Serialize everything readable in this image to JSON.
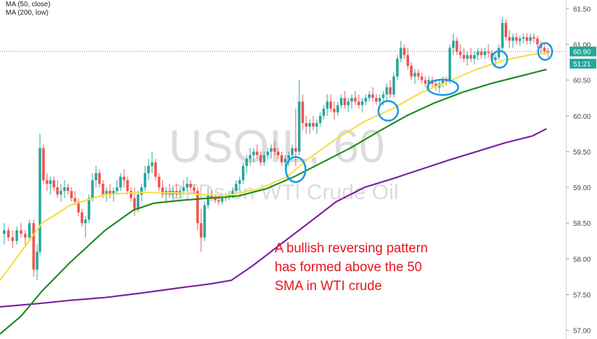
{
  "chart_data": {
    "type": "candlestick",
    "title": "USOIL, 60",
    "subtitle": "CFDs on WTI Crude Oil",
    "indicators": [
      {
        "name": "MA (50, close)",
        "color": "#f2e04a"
      },
      {
        "name": "MA (200, low)",
        "color": "#7b1fa2"
      }
    ],
    "extra_ma_color": "#1e8a1e",
    "ylim": [
      56.88,
      61.62
    ],
    "y_ticks": [
      "61.50",
      "61.00",
      "60.50",
      "60.00",
      "59.50",
      "59.00",
      "58.50",
      "58.00",
      "57.50",
      "57.00"
    ],
    "y_tick_values": [
      61.5,
      61.0,
      60.5,
      60.0,
      59.5,
      59.0,
      58.5,
      58.0,
      57.5,
      57.0
    ],
    "last_price_label": "60.90",
    "last_price": 60.9,
    "countdown_label": "51:21",
    "countdown_price": 60.73,
    "ma50": [
      [
        0,
        57.7
      ],
      [
        30,
        58.1
      ],
      [
        60,
        58.5
      ],
      [
        100,
        58.75
      ],
      [
        150,
        58.9
      ],
      [
        200,
        58.93
      ],
      [
        260,
        58.92
      ],
      [
        320,
        58.88
      ],
      [
        370,
        58.98
      ],
      [
        410,
        59.15
      ],
      [
        440,
        59.4
      ],
      [
        480,
        59.68
      ],
      [
        520,
        59.92
      ],
      [
        560,
        60.1
      ],
      [
        600,
        60.32
      ],
      [
        640,
        60.48
      ],
      [
        680,
        60.65
      ],
      [
        720,
        60.78
      ],
      [
        760,
        60.86
      ],
      [
        785,
        60.88
      ]
    ],
    "ma100_green": [
      [
        0,
        56.95
      ],
      [
        30,
        57.2
      ],
      [
        60,
        57.55
      ],
      [
        100,
        57.95
      ],
      [
        150,
        58.4
      ],
      [
        190,
        58.68
      ],
      [
        220,
        58.78
      ],
      [
        260,
        58.82
      ],
      [
        300,
        58.85
      ],
      [
        340,
        58.88
      ],
      [
        380,
        58.98
      ],
      [
        420,
        59.15
      ],
      [
        460,
        59.35
      ],
      [
        500,
        59.55
      ],
      [
        540,
        59.78
      ],
      [
        580,
        60.0
      ],
      [
        620,
        60.18
      ],
      [
        660,
        60.33
      ],
      [
        700,
        60.45
      ],
      [
        740,
        60.55
      ],
      [
        780,
        60.65
      ]
    ],
    "ma200": [
      [
        0,
        57.33
      ],
      [
        60,
        57.38
      ],
      [
        100,
        57.42
      ],
      [
        150,
        57.46
      ],
      [
        200,
        57.52
      ],
      [
        260,
        57.6
      ],
      [
        300,
        57.65
      ],
      [
        330,
        57.7
      ],
      [
        360,
        57.9
      ],
      [
        400,
        58.2
      ],
      [
        440,
        58.5
      ],
      [
        480,
        58.8
      ],
      [
        520,
        59.0
      ],
      [
        560,
        59.12
      ],
      [
        600,
        59.25
      ],
      [
        640,
        59.38
      ],
      [
        680,
        59.5
      ],
      [
        720,
        59.62
      ],
      [
        760,
        59.72
      ],
      [
        780,
        59.82
      ]
    ],
    "candles": [
      [
        6,
        58.35,
        58.5,
        58.2,
        58.4
      ],
      [
        12,
        58.4,
        58.45,
        58.25,
        58.3
      ],
      [
        18,
        58.3,
        58.4,
        58.15,
        58.25
      ],
      [
        24,
        58.25,
        58.45,
        58.2,
        58.4
      ],
      [
        30,
        58.4,
        58.5,
        58.3,
        58.35
      ],
      [
        36,
        58.35,
        58.4,
        58.2,
        58.3
      ],
      [
        42,
        58.3,
        58.55,
        58.25,
        58.5
      ],
      [
        48,
        58.5,
        58.55,
        57.75,
        57.85
      ],
      [
        53,
        57.85,
        58.2,
        57.7,
        58.1
      ],
      [
        57,
        58.1,
        59.75,
        58.05,
        59.55
      ],
      [
        62,
        59.55,
        59.6,
        59.05,
        59.1
      ],
      [
        67,
        59.1,
        59.2,
        58.95,
        59.05
      ],
      [
        72,
        59.05,
        59.15,
        58.9,
        59.1
      ],
      [
        77,
        59.1,
        59.15,
        58.95,
        59.0
      ],
      [
        82,
        59.0,
        59.1,
        58.85,
        58.9
      ],
      [
        87,
        58.9,
        59.05,
        58.8,
        58.95
      ],
      [
        92,
        58.95,
        59.1,
        58.85,
        59.0
      ],
      [
        97,
        59.0,
        59.05,
        58.9,
        58.95
      ],
      [
        102,
        58.95,
        59.0,
        58.8,
        58.85
      ],
      [
        107,
        58.85,
        58.95,
        58.75,
        58.8
      ],
      [
        112,
        58.8,
        58.85,
        58.6,
        58.65
      ],
      [
        117,
        58.65,
        58.7,
        58.45,
        58.5
      ],
      [
        122,
        58.5,
        58.6,
        58.3,
        58.55
      ],
      [
        127,
        58.55,
        58.9,
        58.5,
        58.85
      ],
      [
        132,
        58.85,
        59.2,
        58.8,
        59.1
      ],
      [
        137,
        59.1,
        59.3,
        59.0,
        59.2
      ],
      [
        142,
        59.2,
        59.25,
        59.0,
        59.05
      ],
      [
        147,
        59.05,
        59.1,
        58.85,
        58.9
      ],
      [
        152,
        58.9,
        59.0,
        58.8,
        58.95
      ],
      [
        157,
        58.95,
        59.05,
        58.85,
        58.9
      ],
      [
        162,
        58.9,
        59.0,
        58.8,
        58.95
      ],
      [
        167,
        58.95,
        59.1,
        58.9,
        59.0
      ],
      [
        172,
        59.0,
        59.2,
        58.95,
        59.15
      ],
      [
        177,
        59.15,
        59.25,
        59.0,
        59.1
      ],
      [
        182,
        59.1,
        59.15,
        58.9,
        58.95
      ],
      [
        187,
        58.95,
        59.0,
        58.8,
        58.85
      ],
      [
        192,
        58.85,
        59.0,
        58.6,
        58.7
      ],
      [
        197,
        58.7,
        58.95,
        58.65,
        58.9
      ],
      [
        202,
        58.9,
        59.05,
        58.8,
        59.0
      ],
      [
        207,
        59.0,
        59.3,
        58.95,
        59.2
      ],
      [
        212,
        59.2,
        59.4,
        59.1,
        59.3
      ],
      [
        217,
        59.3,
        59.5,
        59.2,
        59.35
      ],
      [
        222,
        59.35,
        59.4,
        59.1,
        59.15
      ],
      [
        227,
        59.15,
        59.2,
        58.95,
        59.0
      ],
      [
        232,
        59.0,
        59.1,
        58.85,
        58.9
      ],
      [
        237,
        58.9,
        59.0,
        58.8,
        58.95
      ],
      [
        242,
        58.95,
        59.05,
        58.85,
        58.9
      ],
      [
        247,
        58.9,
        59.0,
        58.8,
        58.95
      ],
      [
        252,
        58.95,
        59.05,
        58.85,
        58.9
      ],
      [
        257,
        58.9,
        59.0,
        58.85,
        58.95
      ],
      [
        262,
        58.95,
        59.1,
        58.9,
        59.0
      ],
      [
        267,
        59.0,
        59.15,
        58.95,
        59.05
      ],
      [
        272,
        59.05,
        59.1,
        58.95,
        59.0
      ],
      [
        277,
        59.0,
        59.05,
        58.9,
        58.95
      ],
      [
        282,
        58.95,
        59.0,
        58.4,
        58.5
      ],
      [
        287,
        58.5,
        58.7,
        58.1,
        58.3
      ],
      [
        292,
        58.3,
        58.8,
        58.25,
        58.75
      ],
      [
        297,
        58.75,
        59.0,
        58.7,
        58.9
      ],
      [
        302,
        58.9,
        58.95,
        58.8,
        58.85
      ],
      [
        307,
        58.85,
        58.9,
        58.78,
        58.82
      ],
      [
        312,
        58.82,
        58.88,
        58.75,
        58.8
      ],
      [
        317,
        58.8,
        58.9,
        58.76,
        58.85
      ],
      [
        322,
        58.85,
        58.92,
        58.8,
        58.88
      ],
      [
        327,
        58.88,
        58.95,
        58.82,
        58.9
      ],
      [
        332,
        58.9,
        59.0,
        58.85,
        58.95
      ],
      [
        337,
        58.95,
        59.1,
        58.9,
        59.05
      ],
      [
        342,
        59.05,
        59.15,
        58.95,
        59.1
      ],
      [
        347,
        59.1,
        59.35,
        59.05,
        59.3
      ],
      [
        352,
        59.3,
        59.45,
        59.2,
        59.4
      ],
      [
        357,
        59.4,
        59.55,
        59.3,
        59.45
      ],
      [
        362,
        59.45,
        59.55,
        59.35,
        59.5
      ],
      [
        367,
        59.5,
        59.6,
        59.4,
        59.45
      ],
      [
        372,
        59.45,
        59.5,
        59.3,
        59.35
      ],
      [
        377,
        59.35,
        59.5,
        59.3,
        59.45
      ],
      [
        382,
        59.45,
        59.55,
        59.4,
        59.5
      ],
      [
        387,
        59.5,
        59.6,
        59.4,
        59.55
      ],
      [
        392,
        59.55,
        59.65,
        59.45,
        59.5
      ],
      [
        397,
        59.5,
        59.55,
        59.4,
        59.45
      ],
      [
        402,
        59.45,
        59.5,
        59.3,
        59.35
      ],
      [
        407,
        59.35,
        59.45,
        59.25,
        59.4
      ],
      [
        412,
        59.4,
        59.5,
        59.3,
        59.45
      ],
      [
        417,
        59.45,
        59.6,
        59.4,
        59.55
      ],
      [
        422,
        59.55,
        60.1,
        59.3,
        59.5
      ],
      [
        427,
        59.5,
        60.5,
        59.45,
        60.2
      ],
      [
        432,
        60.2,
        60.3,
        59.8,
        59.9
      ],
      [
        437,
        59.9,
        60.0,
        59.75,
        59.85
      ],
      [
        442,
        59.85,
        59.95,
        59.75,
        59.9
      ],
      [
        447,
        59.9,
        60.0,
        59.8,
        59.85
      ],
      [
        452,
        59.85,
        59.95,
        59.75,
        59.9
      ],
      [
        457,
        59.9,
        60.05,
        59.85,
        60.0
      ],
      [
        462,
        60.0,
        60.15,
        59.95,
        60.1
      ],
      [
        467,
        60.1,
        60.3,
        60.0,
        60.2
      ],
      [
        472,
        60.2,
        60.3,
        60.05,
        60.1
      ],
      [
        477,
        60.1,
        60.2,
        59.95,
        60.05
      ],
      [
        482,
        60.05,
        60.2,
        60.0,
        60.15
      ],
      [
        487,
        60.15,
        60.3,
        60.1,
        60.25
      ],
      [
        492,
        60.25,
        60.35,
        60.1,
        60.15
      ],
      [
        497,
        60.15,
        60.25,
        60.05,
        60.2
      ],
      [
        502,
        60.2,
        60.3,
        60.1,
        60.25
      ],
      [
        507,
        60.25,
        60.35,
        60.15,
        60.2
      ],
      [
        512,
        60.2,
        60.3,
        60.1,
        60.15
      ],
      [
        517,
        60.15,
        60.25,
        60.05,
        60.2
      ],
      [
        522,
        60.2,
        60.3,
        60.15,
        60.25
      ],
      [
        527,
        60.25,
        60.35,
        60.2,
        60.3
      ],
      [
        532,
        60.3,
        60.4,
        60.2,
        60.25
      ],
      [
        537,
        60.25,
        60.3,
        60.15,
        60.2
      ],
      [
        542,
        60.2,
        60.3,
        60.1,
        60.25
      ],
      [
        547,
        60.25,
        60.35,
        60.15,
        60.3
      ],
      [
        552,
        60.3,
        60.45,
        60.2,
        60.4
      ],
      [
        557,
        60.4,
        60.5,
        60.25,
        60.3
      ],
      [
        562,
        60.3,
        60.6,
        60.25,
        60.55
      ],
      [
        567,
        60.55,
        60.85,
        60.5,
        60.8
      ],
      [
        572,
        60.8,
        61.05,
        60.75,
        60.95
      ],
      [
        577,
        60.95,
        61.0,
        60.8,
        60.85
      ],
      [
        582,
        60.85,
        60.95,
        60.65,
        60.7
      ],
      [
        587,
        60.7,
        60.75,
        60.5,
        60.55
      ],
      [
        592,
        60.55,
        60.65,
        60.45,
        60.6
      ],
      [
        597,
        60.6,
        60.65,
        60.5,
        60.55
      ],
      [
        602,
        60.55,
        60.6,
        60.45,
        60.5
      ],
      [
        607,
        60.5,
        60.55,
        60.4,
        60.45
      ],
      [
        612,
        60.45,
        60.55,
        60.38,
        60.5
      ],
      [
        617,
        60.5,
        60.55,
        60.4,
        60.45
      ],
      [
        622,
        60.45,
        60.5,
        60.35,
        60.4
      ],
      [
        627,
        60.4,
        60.5,
        60.32,
        60.45
      ],
      [
        632,
        60.45,
        60.55,
        60.4,
        60.5
      ],
      [
        637,
        60.5,
        60.55,
        60.42,
        60.48
      ],
      [
        642,
        60.48,
        61.0,
        60.45,
        60.95
      ],
      [
        647,
        60.95,
        61.15,
        60.85,
        61.05
      ],
      [
        652,
        61.05,
        61.1,
        60.85,
        60.9
      ],
      [
        657,
        60.9,
        61.0,
        60.8,
        60.85
      ],
      [
        662,
        60.85,
        60.95,
        60.75,
        60.8
      ],
      [
        667,
        60.8,
        60.9,
        60.7,
        60.85
      ],
      [
        672,
        60.85,
        60.95,
        60.75,
        60.8
      ],
      [
        677,
        60.8,
        60.9,
        60.72,
        60.85
      ],
      [
        682,
        60.85,
        60.95,
        60.78,
        60.9
      ],
      [
        687,
        60.9,
        60.95,
        60.8,
        60.85
      ],
      [
        692,
        60.85,
        60.95,
        60.8,
        60.9
      ],
      [
        697,
        60.9,
        61.0,
        60.82,
        60.88
      ],
      [
        702,
        60.88,
        60.92,
        60.72,
        60.78
      ],
      [
        707,
        60.78,
        60.85,
        60.7,
        60.82
      ],
      [
        712,
        60.82,
        61.0,
        60.78,
        60.95
      ],
      [
        717,
        60.95,
        61.38,
        60.9,
        61.3
      ],
      [
        722,
        61.3,
        61.35,
        61.05,
        61.1
      ],
      [
        727,
        61.1,
        61.2,
        60.95,
        61.05
      ],
      [
        732,
        61.05,
        61.15,
        60.95,
        61.1
      ],
      [
        737,
        61.1,
        61.15,
        61.0,
        61.05
      ],
      [
        742,
        61.05,
        61.12,
        60.98,
        61.08
      ],
      [
        747,
        61.08,
        61.15,
        61.02,
        61.1
      ],
      [
        752,
        61.1,
        61.15,
        61.0,
        61.05
      ],
      [
        757,
        61.05,
        61.15,
        61.0,
        61.1
      ],
      [
        762,
        61.1,
        61.15,
        61.02,
        61.08
      ],
      [
        767,
        61.08,
        61.12,
        60.95,
        61.0
      ],
      [
        772,
        61.0,
        61.05,
        60.88,
        60.95
      ],
      [
        777,
        60.95,
        61.0,
        60.85,
        60.9
      ],
      [
        782,
        60.9,
        60.95,
        60.82,
        60.88
      ]
    ],
    "highlight_circles": [
      {
        "x": 422,
        "y": 59.25
      },
      {
        "x": 554,
        "y": 60.07
      },
      {
        "x": 632,
        "y": 60.4
      },
      {
        "x": 713,
        "y": 60.79
      },
      {
        "x": 778,
        "y": 60.9
      }
    ],
    "annotation": [
      "A bullish reversing pattern",
      "has formed above the 50",
      "SMA in WTI crude"
    ]
  }
}
